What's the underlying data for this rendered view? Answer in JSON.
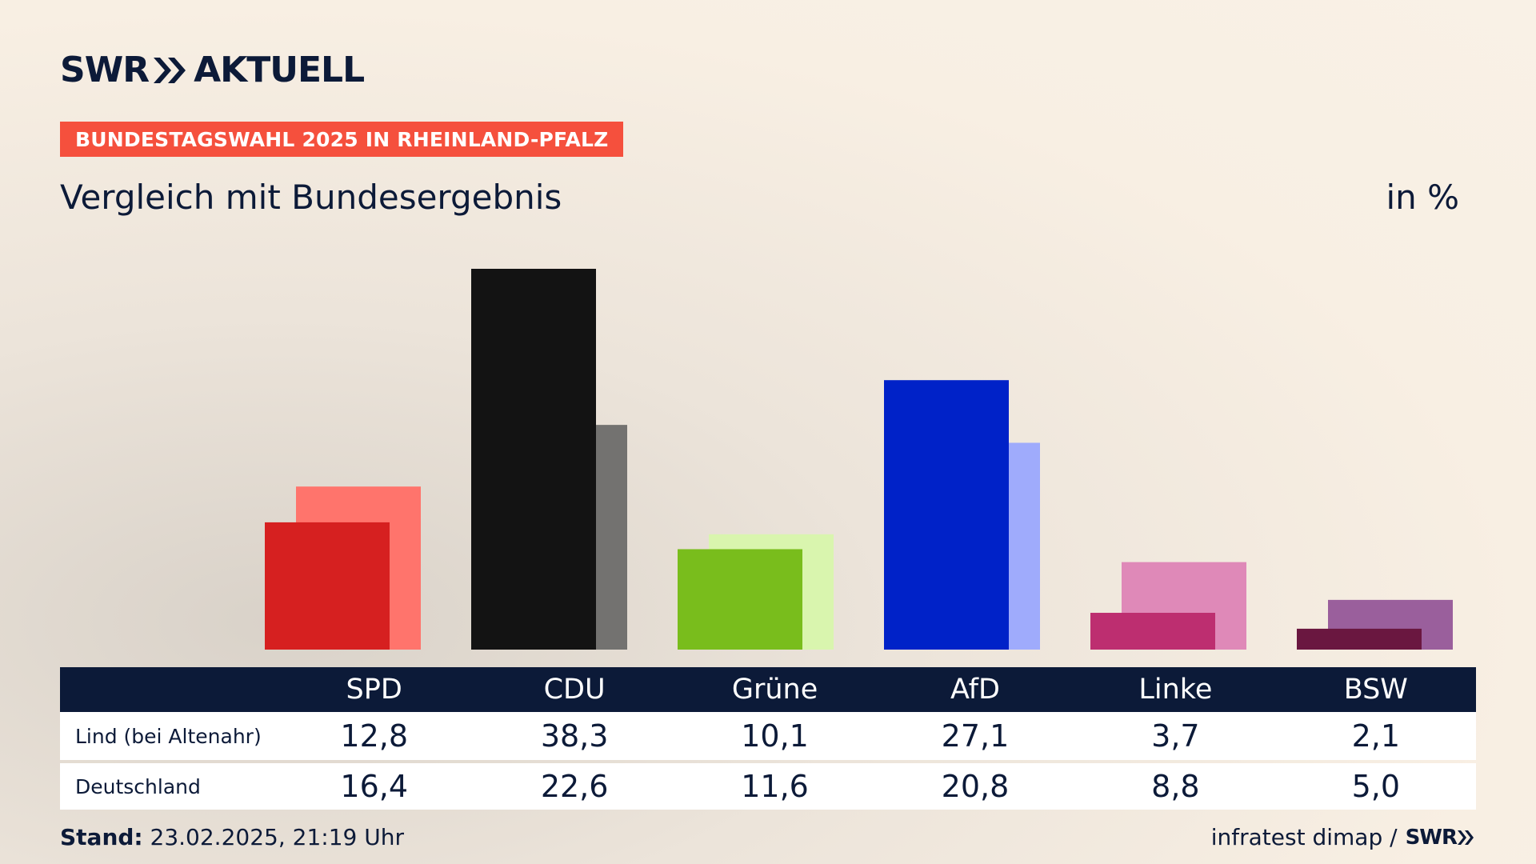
{
  "header": {
    "logo_left": "SWR",
    "logo_right": "AKTUELL",
    "badge": "BUNDESTAGSWAHL 2025 IN RHEINLAND-PFALZ",
    "subtitle": "Vergleich mit Bundesergebnis",
    "unit": "in %"
  },
  "colors": {
    "navy": "#0c1a38",
    "badge": "#f5503d"
  },
  "chart_data": {
    "type": "bar",
    "categories": [
      "SPD",
      "CDU",
      "Grüne",
      "AfD",
      "Linke",
      "BSW"
    ],
    "series": [
      {
        "name": "Lind (bei Altenahr)",
        "values": [
          12.8,
          38.3,
          10.1,
          27.1,
          3.7,
          2.1
        ],
        "colors": [
          "#d62020",
          "#131313",
          "#79bd1c",
          "#0022c8",
          "#bd2e70",
          "#6a1740"
        ]
      },
      {
        "name": "Deutschland",
        "values": [
          16.4,
          22.6,
          11.6,
          20.8,
          8.8,
          5.0
        ],
        "colors": [
          "#ff746c",
          "#737270",
          "#d9f5ae",
          "#9fabfc",
          "#df89b8",
          "#9a5f9c"
        ]
      }
    ],
    "ylim": [
      0,
      38.3
    ]
  },
  "table": {
    "rows": [
      {
        "label": "Lind (bei Altenahr)",
        "values": [
          "12,8",
          "38,3",
          "10,1",
          "27,1",
          "3,7",
          "2,1"
        ]
      },
      {
        "label": "Deutschland",
        "values": [
          "16,4",
          "22,6",
          "11,6",
          "20,8",
          "8,8",
          "5,0"
        ]
      }
    ]
  },
  "footer": {
    "stand_label": "Stand:",
    "stand_value": " 23.02.2025, 21:19 Uhr",
    "source": "infratest dimap /",
    "small_logo": "SWR"
  }
}
